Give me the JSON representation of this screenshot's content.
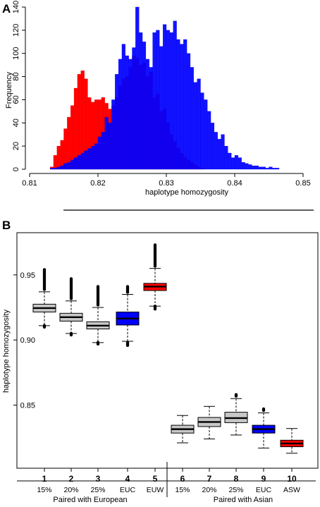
{
  "panels": {
    "a_label": "A",
    "b_label": "B"
  },
  "colors": {
    "european": "#ff0000",
    "asian": "#0000ff",
    "gray_box": "#c8c8c8",
    "euc_box": "#0000ff",
    "euw_box": "#ff0000"
  },
  "chart_data": [
    {
      "type": "histogram",
      "xlabel": "haplotype homozygosity",
      "ylabel": "Frequency",
      "xlim": [
        0.81,
        0.85
      ],
      "ylim": [
        0,
        140
      ],
      "xticks": [
        "0.81",
        "0.82",
        "0.83",
        "0.84",
        "0.85"
      ],
      "yticks": [
        "0",
        "20",
        "40",
        "60",
        "80",
        "100",
        "120",
        "140"
      ],
      "bin_start": 0.813,
      "bin_width": 0.0005,
      "series": [
        {
          "color": "#ff0000",
          "values": [
            2,
            12,
            20,
            25,
            35,
            45,
            55,
            70,
            82,
            85,
            78,
            62,
            58,
            60,
            60,
            62,
            57,
            52,
            55,
            62,
            72,
            78,
            80,
            88,
            98,
            96,
            90,
            92,
            80,
            84,
            62,
            65,
            50,
            52,
            40,
            30,
            24,
            18,
            14,
            10,
            8,
            6,
            4,
            2,
            1
          ]
        },
        {
          "color": "#0000ff",
          "values": [
            1,
            1,
            2,
            3,
            5,
            6,
            8,
            10,
            12,
            14,
            16,
            18,
            20,
            22,
            28,
            32,
            45,
            40,
            60,
            82,
            95,
            108,
            98,
            95,
            105,
            140,
            118,
            110,
            95,
            88,
            118,
            120,
            106,
            125,
            120,
            118,
            128,
            112,
            108,
            112,
            100,
            88,
            75,
            78,
            66,
            60,
            50,
            40,
            32,
            26,
            30,
            20,
            14,
            10,
            12,
            10,
            6,
            5,
            4,
            3,
            3,
            2,
            2,
            1,
            2,
            1,
            1
          ]
        }
      ]
    },
    {
      "type": "boxplot",
      "ylabel": "haplotype homozygosity",
      "yticks": [
        "0.85",
        "0.90",
        "0.95"
      ],
      "ytick_values": [
        0.85,
        0.9,
        0.95
      ],
      "ylim": [
        0.808,
        0.977
      ],
      "categories": [
        "1",
        "2",
        "3",
        "4",
        "5",
        "6",
        "7",
        "8",
        "9",
        "10"
      ],
      "sublabels": [
        "15%",
        "20%",
        "25%",
        "EUC",
        "EUW",
        "15%",
        "20%",
        "25%",
        "EUC",
        "ASW"
      ],
      "groups": [
        "Paired with European",
        "Paired with Asian"
      ],
      "boxes": [
        {
          "color": "#c8c8c8",
          "whisker_low": 0.911,
          "q1": 0.9215,
          "median": 0.9245,
          "q3": 0.9275,
          "whisker_high": 0.937,
          "outliers_low": [
            0.909,
            0.911
          ],
          "outliers_high": [
            0.938,
            0.954
          ]
        },
        {
          "color": "#c8c8c8",
          "whisker_low": 0.905,
          "q1": 0.9145,
          "median": 0.9175,
          "q3": 0.9205,
          "whisker_high": 0.93,
          "outliers_low": [
            0.903,
            0.905
          ],
          "outliers_high": [
            0.931,
            0.947
          ]
        },
        {
          "color": "#c8c8c8",
          "whisker_low": 0.898,
          "q1": 0.9085,
          "median": 0.911,
          "q3": 0.914,
          "whisker_high": 0.925,
          "outliers_low": [
            0.896,
            0.898
          ],
          "outliers_high": [
            0.926,
            0.941
          ]
        },
        {
          "color": "#0000ff",
          "whisker_low": 0.899,
          "q1": 0.9115,
          "median": 0.9165,
          "q3": 0.9215,
          "whisker_high": 0.935,
          "outliers_low": [
            0.895,
            0.898
          ],
          "outliers_high": [
            0.936,
            0.941
          ]
        },
        {
          "color": "#ff0000",
          "whisker_low": 0.926,
          "q1": 0.938,
          "median": 0.941,
          "q3": 0.9435,
          "whisker_high": 0.955,
          "outliers_low": [
            0.923,
            0.926
          ],
          "outliers_high": [
            0.956,
            0.973
          ]
        },
        {
          "color": "#c8c8c8",
          "whisker_low": 0.821,
          "q1": 0.8285,
          "median": 0.8315,
          "q3": 0.8345,
          "whisker_high": 0.842
        },
        {
          "color": "#c8c8c8",
          "whisker_low": 0.824,
          "q1": 0.8335,
          "median": 0.837,
          "q3": 0.8405,
          "whisker_high": 0.849
        },
        {
          "color": "#c8c8c8",
          "whisker_low": 0.827,
          "q1": 0.8365,
          "median": 0.84,
          "q3": 0.8445,
          "whisker_high": 0.855,
          "outliers_high": [
            0.856,
            0.858
          ]
        },
        {
          "color": "#0000ff",
          "whisker_low": 0.817,
          "q1": 0.8285,
          "median": 0.8315,
          "q3": 0.8345,
          "whisker_high": 0.844,
          "outliers_high": [
            0.845,
            0.847
          ]
        },
        {
          "color": "#ff0000",
          "whisker_low": 0.813,
          "q1": 0.818,
          "median": 0.8205,
          "q3": 0.823,
          "whisker_high": 0.832
        }
      ]
    }
  ]
}
